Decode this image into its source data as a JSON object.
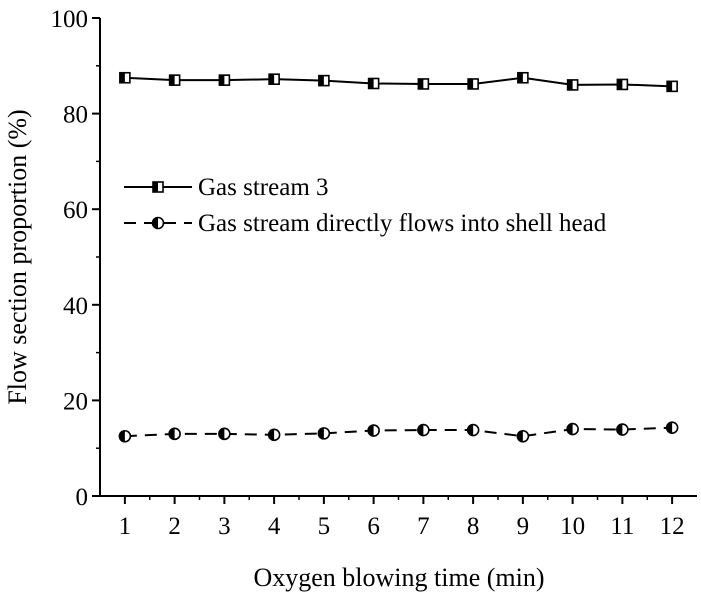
{
  "chart_data": {
    "type": "line",
    "xlabel": "Oxygen blowing time (min)",
    "ylabel": "Flow section proportion (%)",
    "categories": [
      "1",
      "2",
      "3",
      "4",
      "5",
      "6",
      "7",
      "8",
      "9",
      "10",
      "11",
      "12"
    ],
    "x": [
      1,
      2,
      3,
      4,
      5,
      6,
      7,
      8,
      9,
      10,
      11,
      12
    ],
    "xlim": [
      0.5,
      12.5
    ],
    "ylim": [
      0,
      100
    ],
    "yticks": [
      "0",
      "20",
      "40",
      "60",
      "80",
      "100"
    ],
    "grid": false,
    "legend_position": "center-left",
    "series": [
      {
        "name": "Gas stream 3",
        "marker": "half-filled-square",
        "line_style": "solid",
        "color": "#000000",
        "values": [
          87.5,
          87.0,
          87.0,
          87.2,
          86.9,
          86.3,
          86.2,
          86.2,
          87.5,
          86.0,
          86.1,
          85.7
        ]
      },
      {
        "name": "Gas stream directly flows into shell head",
        "marker": "half-filled-circle",
        "line_style": "dashed",
        "color": "#000000",
        "values": [
          12.5,
          13.0,
          13.0,
          12.8,
          13.1,
          13.7,
          13.8,
          13.8,
          12.5,
          14.0,
          13.9,
          14.3
        ]
      }
    ]
  }
}
